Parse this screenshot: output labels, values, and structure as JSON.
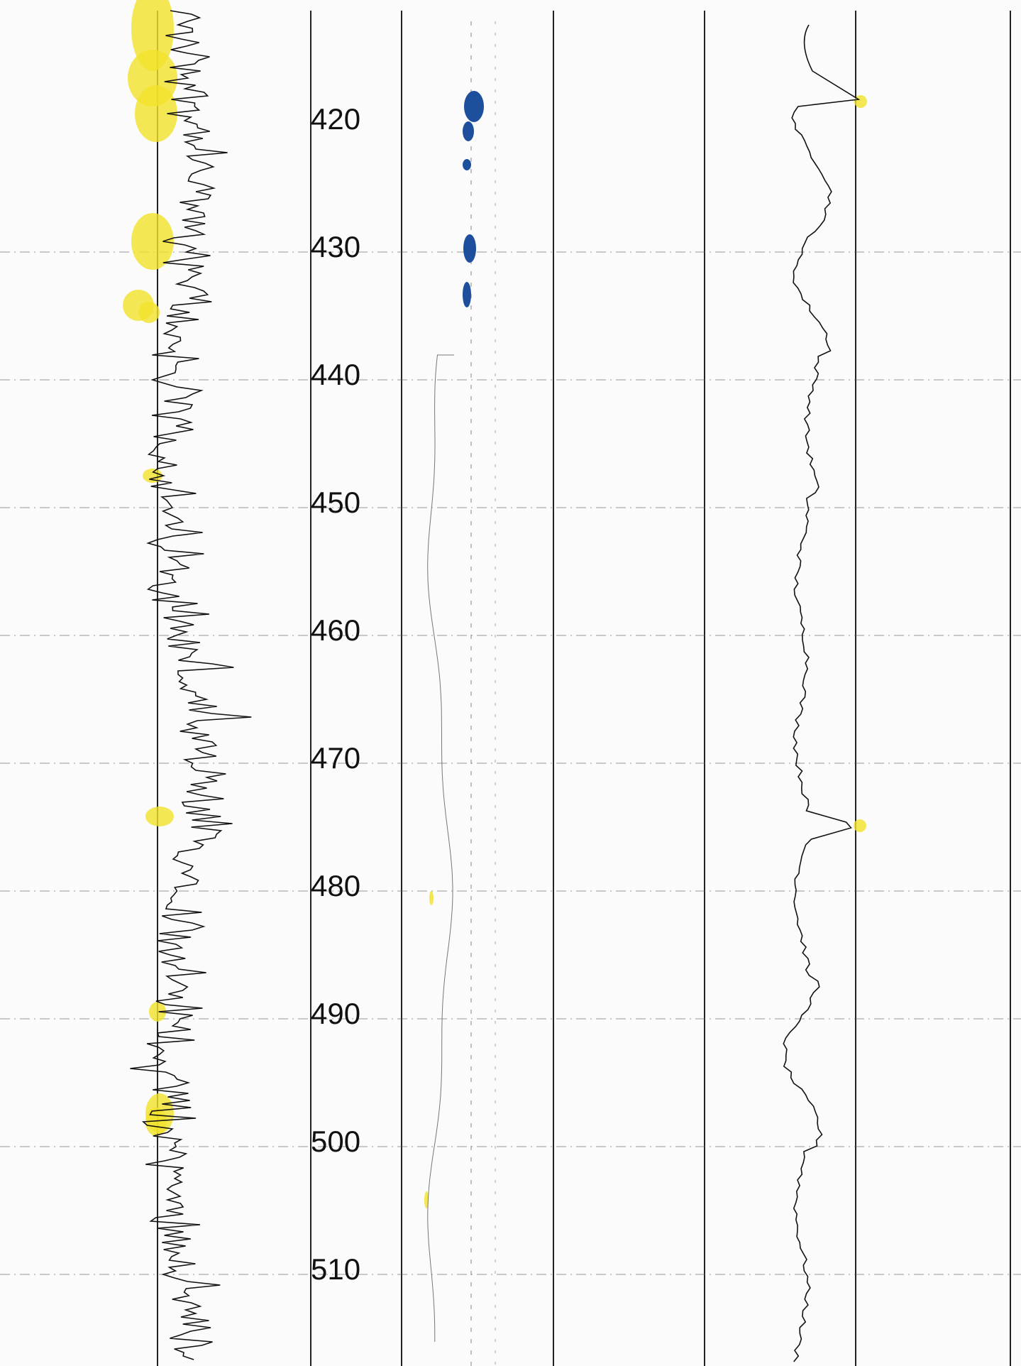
{
  "depth_labels": [
    420,
    430,
    440,
    450,
    460,
    470,
    480,
    490,
    500,
    510
  ]
}
